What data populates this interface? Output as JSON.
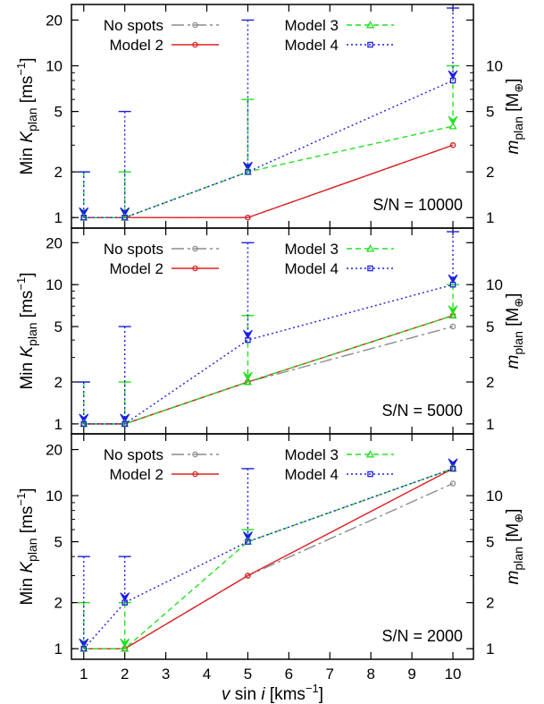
{
  "chart_data": [
    {
      "type": "line",
      "annotation": "S/N = 10000",
      "ylabel": "Min K_plan [ms^-1]",
      "y2label": "m_plan [M_⊕]",
      "x": [
        1,
        2,
        5,
        10
      ],
      "ylim": [
        0.9,
        24
      ],
      "yscale": "log",
      "yticks": [
        "1",
        "2",
        "5",
        "10",
        "20"
      ],
      "y2ticks": [
        "1",
        "2",
        "5",
        "10"
      ],
      "series": [
        {
          "name": "No spots",
          "color": "#8c8c8c",
          "values": [
            1.0,
            1.0,
            1.0,
            3.0
          ]
        },
        {
          "name": "Model 2",
          "color": "#e02020",
          "values": [
            1.0,
            1.0,
            1.0,
            3.0
          ]
        },
        {
          "name": "Model 3",
          "color": "#22e022",
          "values": [
            1.0,
            1.0,
            2.0,
            4.0
          ],
          "upper": [
            2.0,
            2.0,
            6.0,
            10.0
          ]
        },
        {
          "name": "Model 4",
          "color": "#1f1fe0",
          "values": [
            1.0,
            1.0,
            2.0,
            8.0
          ],
          "upper": [
            2.0,
            5.0,
            20.0,
            24.0
          ]
        }
      ]
    },
    {
      "type": "line",
      "annotation": "S/N = 5000",
      "ylabel": "Min K_plan [ms^-1]",
      "y2label": "m_plan [M_⊕]",
      "x": [
        1,
        2,
        5,
        10
      ],
      "ylim": [
        0.9,
        24
      ],
      "yscale": "log",
      "yticks": [
        "1",
        "2",
        "5",
        "10",
        "20"
      ],
      "y2ticks": [
        "1",
        "2",
        "5",
        "10"
      ],
      "series": [
        {
          "name": "No spots",
          "color": "#8c8c8c",
          "values": [
            1.0,
            1.0,
            2.0,
            5.0
          ]
        },
        {
          "name": "Model 2",
          "color": "#e02020",
          "values": [
            1.0,
            1.0,
            2.0,
            6.0
          ]
        },
        {
          "name": "Model 3",
          "color": "#22e022",
          "values": [
            1.0,
            1.0,
            2.0,
            6.0
          ],
          "upper": [
            2.0,
            2.0,
            6.0,
            10.0
          ]
        },
        {
          "name": "Model 4",
          "color": "#1f1fe0",
          "values": [
            1.0,
            1.0,
            4.0,
            10.0
          ],
          "upper": [
            2.0,
            5.0,
            20.0,
            24.0
          ]
        }
      ]
    },
    {
      "type": "line",
      "annotation": "S/N = 2000",
      "xlabel": "v sin i [kms^-1]",
      "ylabel": "Min K_plan [ms^-1]",
      "y2label": "m_plan [M_⊕]",
      "x": [
        1,
        2,
        5,
        10
      ],
      "xlim": [
        0.7,
        10.5
      ],
      "xticks": [
        "1",
        "2",
        "3",
        "4",
        "5",
        "6",
        "7",
        "8",
        "9",
        "10"
      ],
      "ylim": [
        0.9,
        24
      ],
      "yscale": "log",
      "yticks": [
        "1",
        "2",
        "5",
        "10",
        "20"
      ],
      "y2ticks": [
        "1",
        "2",
        "5",
        "10"
      ],
      "series": [
        {
          "name": "No spots",
          "color": "#8c8c8c",
          "values": [
            1.0,
            1.0,
            3.0,
            12.0
          ]
        },
        {
          "name": "Model 2",
          "color": "#e02020",
          "values": [
            1.0,
            1.0,
            3.0,
            15.0
          ]
        },
        {
          "name": "Model 3",
          "color": "#22e022",
          "values": [
            1.0,
            1.0,
            5.0,
            15.0
          ],
          "upper": [
            2.0,
            2.0,
            6.0,
            15.0
          ]
        },
        {
          "name": "Model 4",
          "color": "#1f1fe0",
          "values": [
            1.0,
            2.0,
            5.0,
            15.0
          ],
          "upper": [
            4.0,
            4.0,
            15.0,
            15.0
          ]
        }
      ]
    }
  ]
}
